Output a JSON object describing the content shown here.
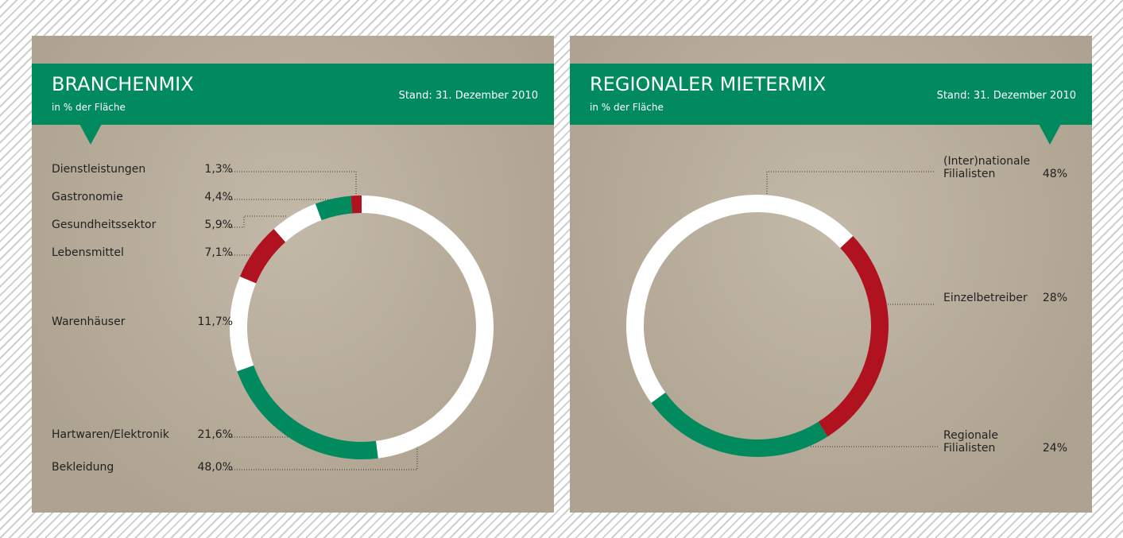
{
  "chart_data": [
    {
      "type": "donut",
      "title": "BRANCHENMIX",
      "subtitle": "in % der Fläche",
      "annotation": "Stand: 31. Dezember 2010",
      "categories": [
        "Dienstleistungen",
        "Gastronomie",
        "Gesundheitssektor",
        "Lebensmittel",
        "Warenhäuser",
        "Hartwaren/Elektronik",
        "Bekleidung"
      ],
      "values": [
        1.3,
        4.4,
        5.9,
        7.1,
        11.7,
        21.6,
        48.0
      ],
      "value_labels": [
        "1,3%",
        "4,4%",
        "5,9%",
        "7,1%",
        "11,7%",
        "21,6%",
        "48,0%"
      ],
      "colors": [
        "#b0121f",
        "#008a5e",
        "#ffffff",
        "#b0121f",
        "#ffffff",
        "#008a5e",
        "#ffffff"
      ]
    },
    {
      "type": "donut",
      "title": "REGIONALER MIETERMIX",
      "subtitle": "in % der Fläche",
      "annotation": "Stand: 31. Dezember 2010",
      "categories": [
        "(Inter)nationale Filialisten",
        "Einzelbetreiber",
        "Regionale Filialisten"
      ],
      "values": [
        48,
        28,
        24
      ],
      "value_labels": [
        "48%",
        "28%",
        "24%"
      ],
      "colors": [
        "#ffffff",
        "#b0121f",
        "#008a5e"
      ]
    }
  ]
}
